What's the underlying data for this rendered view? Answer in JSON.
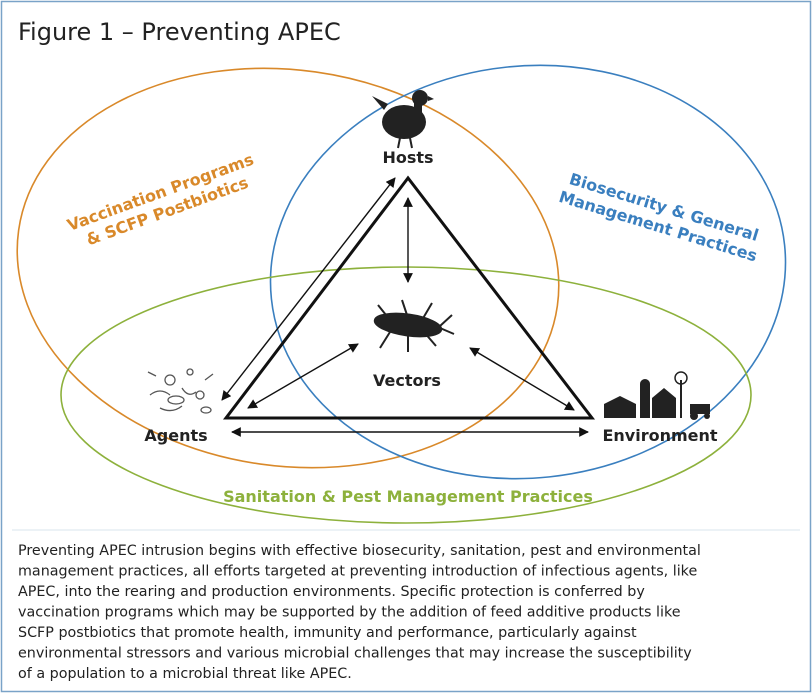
{
  "header": {
    "title": "Figure 1 – Preventing APEC"
  },
  "circles": [
    {
      "lines": [
        "Vaccination Programs",
        "& SCFP Postbiotics"
      ]
    },
    {
      "lines": [
        "Biosecurity & General",
        "Management Practices"
      ]
    },
    {
      "lines": [
        "Sanitation & Pest Management Practices"
      ]
    }
  ],
  "nodes": [
    {
      "label": "Hosts"
    },
    {
      "label": "Vectors"
    },
    {
      "label": "Agents"
    },
    {
      "label": "Environment"
    }
  ],
  "caption": {
    "lines": [
      "Preventing APEC intrusion begins with effective biosecurity, sanitation, pest and environmental",
      "management practices, all efforts targeted at preventing introduction of infectious agents, like",
      "APEC, into the rearing and production environments. Specific protection is conferred by",
      "vaccination programs which may be supported by the addition of feed additive products like",
      "SCFP postbiotics that promote health, immunity and performance, particularly against",
      "environmental stressors and various microbial challenges that may increase the susceptibility",
      "of a population to a microbial threat like APEC."
    ]
  }
}
